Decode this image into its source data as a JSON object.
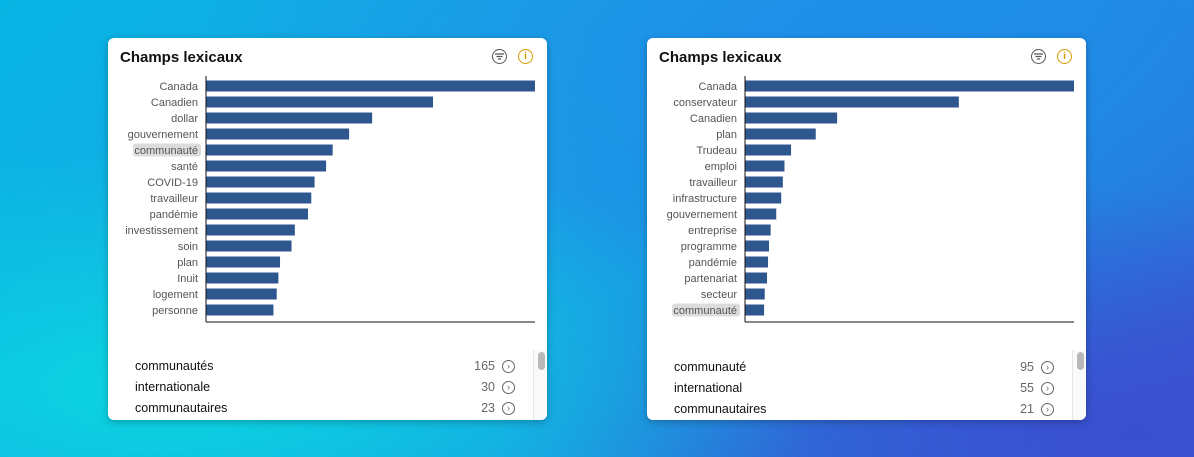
{
  "panels": [
    {
      "title": "Champs lexicaux",
      "filter_icon": "filter-lines-icon",
      "info_icon": "info-icon",
      "highlighted": "communauté",
      "list": [
        {
          "term": "communautés",
          "count": "165"
        },
        {
          "term": "internationale",
          "count": "30"
        },
        {
          "term": "communautaires",
          "count": "23"
        }
      ]
    },
    {
      "title": "Champs lexicaux",
      "filter_icon": "filter-lines-icon",
      "info_icon": "info-icon",
      "highlighted": "communauté",
      "list": [
        {
          "term": "communauté",
          "count": "95"
        },
        {
          "term": "international",
          "count": "55"
        },
        {
          "term": "communautaires",
          "count": "21"
        }
      ]
    }
  ],
  "colors": {
    "bar": "#2f578f",
    "highlight_bg": "#dcdcdc",
    "info": "#d99a00"
  },
  "chart_data": [
    {
      "type": "bar",
      "orientation": "horizontal",
      "title": "Champs lexicaux",
      "categories": [
        "Canada",
        "Canadien",
        "dollar",
        "gouvernement",
        "communauté",
        "santé",
        "COVID-19",
        "travailleur",
        "pandémie",
        "investissement",
        "soin",
        "plan",
        "Inuit",
        "logement",
        "personne"
      ],
      "values": [
        100,
        69,
        50.5,
        43.5,
        38.5,
        36.5,
        33,
        32,
        31,
        27,
        26,
        22.5,
        22,
        21.5,
        20.5
      ],
      "xlim": [
        0,
        100
      ],
      "grid": false
    },
    {
      "type": "bar",
      "orientation": "horizontal",
      "title": "Champs lexicaux",
      "categories": [
        "Canada",
        "conservateur",
        "Canadien",
        "plan",
        "Trudeau",
        "emploi",
        "travailleur",
        "infrastructure",
        "gouvernement",
        "entreprise",
        "programme",
        "pandémie",
        "partenariat",
        "secteur",
        "communauté"
      ],
      "values": [
        100,
        65,
        28,
        21.5,
        14,
        12,
        11.5,
        11,
        9.5,
        7.8,
        7.3,
        7,
        6.7,
        6,
        5.8
      ],
      "xlim": [
        0,
        100
      ],
      "grid": false
    }
  ]
}
